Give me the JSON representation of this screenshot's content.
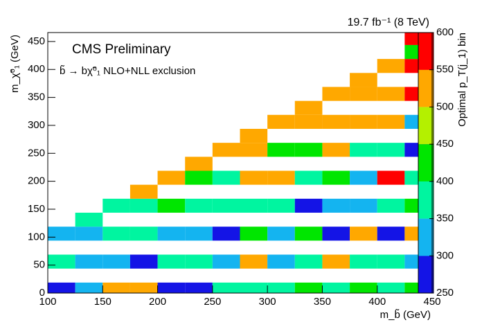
{
  "chart_data": {
    "type": "heatmap",
    "title": "CMS Preliminary",
    "subtitle": "b̃ → bχ̃⁰₁ NLO+NLL exclusion",
    "lumi_label": "19.7 fb⁻¹ (8 TeV)",
    "x_label": "m_b̃ (GeV)",
    "y_label": "m_χ̃⁰₁ (GeV)",
    "z_label": "Optimal p_T(j_1) bin",
    "xlim": [
      100,
      450
    ],
    "xticks": [
      100,
      150,
      200,
      250,
      300,
      350,
      400,
      450
    ],
    "ylim": [
      0,
      466
    ],
    "yticks": [
      0,
      50,
      100,
      150,
      200,
      250,
      300,
      350,
      400,
      450
    ],
    "zlim": [
      250,
      600
    ],
    "zticks": [
      250,
      300,
      350,
      400,
      450,
      500,
      550,
      600
    ],
    "colors": [
      "#1414e6",
      "#14b4f0",
      "#00f5a0",
      "#00e600",
      "#b4f000",
      "#ffa800",
      "#ff0000"
    ],
    "xbins": [
      100,
      125,
      150,
      175,
      200,
      225,
      250,
      275,
      300,
      325,
      350,
      375,
      400,
      425,
      450
    ],
    "ybins": [
      -6.25,
      18.75,
      43.75,
      68.75,
      93.75,
      118.75,
      143.75,
      168.75,
      193.75,
      218.75,
      243.75,
      268.75,
      293.75,
      318.75,
      343.75,
      368.75,
      393.75,
      418.75,
      443.75,
      468.75
    ],
    "z": [
      [
        275,
        325,
        525,
        525,
        275,
        275,
        375,
        375,
        375,
        425,
        375,
        425,
        375,
        425
      ],
      [
        null,
        null,
        null,
        null,
        null,
        null,
        null,
        null,
        null,
        null,
        null,
        null,
        null,
        null
      ],
      [
        375,
        325,
        325,
        275,
        375,
        375,
        325,
        525,
        325,
        375,
        525,
        375,
        375,
        325
      ],
      [
        null,
        null,
        null,
        null,
        null,
        null,
        null,
        null,
        null,
        null,
        null,
        null,
        null,
        null
      ],
      [
        325,
        325,
        375,
        375,
        325,
        325,
        275,
        425,
        325,
        425,
        275,
        525,
        275,
        525
      ],
      [
        null,
        375,
        null,
        null,
        null,
        null,
        null,
        null,
        null,
        null,
        null,
        null,
        null,
        null
      ],
      [
        null,
        null,
        375,
        375,
        425,
        375,
        375,
        375,
        375,
        275,
        325,
        325,
        375,
        425
      ],
      [
        null,
        null,
        null,
        525,
        null,
        null,
        null,
        null,
        null,
        null,
        null,
        null,
        null,
        null
      ],
      [
        null,
        null,
        null,
        null,
        525,
        425,
        375,
        525,
        525,
        375,
        425,
        325,
        575,
        375
      ],
      [
        null,
        null,
        null,
        null,
        null,
        525,
        null,
        null,
        null,
        null,
        null,
        null,
        null,
        null
      ],
      [
        null,
        null,
        null,
        null,
        null,
        null,
        525,
        525,
        425,
        425,
        525,
        375,
        375,
        275
      ],
      [
        null,
        null,
        null,
        null,
        null,
        null,
        null,
        525,
        null,
        null,
        null,
        null,
        null,
        null
      ],
      [
        null,
        null,
        null,
        null,
        null,
        null,
        null,
        null,
        525,
        525,
        525,
        525,
        525,
        325
      ],
      [
        null,
        null,
        null,
        null,
        null,
        null,
        null,
        null,
        null,
        525,
        null,
        null,
        null,
        null
      ],
      [
        null,
        null,
        null,
        null,
        null,
        null,
        null,
        null,
        null,
        null,
        525,
        525,
        525,
        575
      ],
      [
        null,
        null,
        null,
        null,
        null,
        null,
        null,
        null,
        null,
        null,
        null,
        525,
        null,
        null
      ],
      [
        null,
        null,
        null,
        null,
        null,
        null,
        null,
        null,
        null,
        null,
        null,
        null,
        525,
        575
      ],
      [
        null,
        null,
        null,
        null,
        null,
        null,
        null,
        null,
        null,
        null,
        null,
        null,
        null,
        425
      ],
      [
        null,
        null,
        null,
        null,
        null,
        null,
        null,
        null,
        null,
        null,
        null,
        null,
        null,
        575
      ]
    ]
  }
}
